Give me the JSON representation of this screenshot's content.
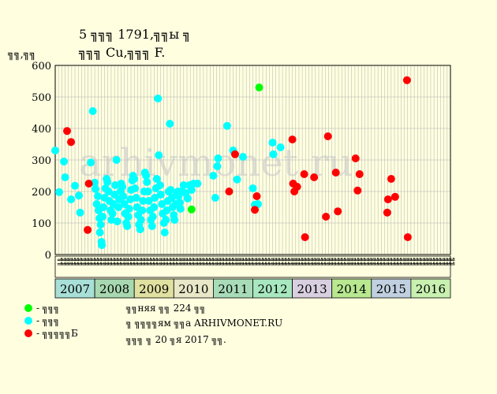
{
  "title_line1": "5 ╗╗╗ 1791,╗╗ы ╗",
  "title_line2": "╗╗╗ Cu,╗╗╗ F.",
  "ylabel": "╗╗,╗╗",
  "watermark": "arhivmonet.ru",
  "footer": {
    "line1": "╗╗няя ╗╗ 224 ╗╗",
    "line2": "╗ ╗╗╗╗ям ╗╗а ARHIVMONET.RU",
    "line3": "╗╗╗ ╗ 20 ╗я 2017 ╗╗."
  },
  "legend": [
    {
      "label": "- ╗╗╗",
      "color": "#00ff00"
    },
    {
      "label": "- ╗╗╗",
      "color": "#00ffff"
    },
    {
      "label": "- ╗╗╗╗╗Б",
      "color": "#ff0000"
    }
  ],
  "colors": {
    "background": "#ffffe0",
    "grid": "#b0b0b0"
  },
  "chart_data": {
    "type": "scatter",
    "ylim": [
      0,
      600
    ],
    "yticks": [
      0,
      100,
      200,
      300,
      400,
      500,
      600
    ],
    "grid": true,
    "xlim": [
      2007,
      2017
    ],
    "month_labels": [
      "╗╗",
      "╗╗",
      "╗╗",
      "╗╗",
      "╗╗",
      "╗╗",
      "╗╗",
      "╗╗",
      "╗╗",
      "╗╗",
      "╗╗",
      "╗╗",
      "╗╗",
      "╗╗",
      "╗╗",
      "╗╗",
      "╗╗",
      "╗╗",
      "╗╗",
      "╗╗",
      "╗╗",
      "╗╗",
      "╗╗",
      "╗╗",
      "╗╗",
      "╗╗",
      "╗╗",
      "╗╗",
      "╗╗",
      "╗╗",
      "╗╗",
      "╗╗",
      "╗╗",
      "╗╗",
      "╗╗",
      "╗╗",
      "╗╗",
      "╗╗",
      "╗╗",
      "╗╗",
      "╗╗",
      "╗╗",
      "╗╗",
      "╗╗",
      "╗╗",
      "╗╗",
      "╗╗",
      "╗╗",
      "╗╗",
      "╗╗",
      "╗╗",
      "╗╗",
      "╗╗",
      "╗╗",
      "╗╗",
      "╗╗",
      "╗╗",
      "╗╗",
      "╗╗",
      "╗╗",
      "╗╗",
      "╗╗",
      "╗╗",
      "╗╗",
      "╗╗",
      "╗╗",
      "╗╗",
      "╗╗",
      "╗╗",
      "╗╗",
      "╗╗",
      "╗╗",
      "╗╗",
      "╗╗",
      "╗╗",
      "╗╗",
      "╗╗",
      "╗╗",
      "╗╗",
      "╗╗",
      "╗╗",
      "╗╗",
      "╗╗",
      "╗╗",
      "╗╗",
      "╗╗",
      "╗╗",
      "╗╗",
      "╗╗",
      "╗╗",
      "╗╗",
      "╗╗",
      "╗╗",
      "╗╗",
      "╗╗",
      "╗╗",
      "╗╗",
      "╗╗",
      "╗╗",
      "╗╗",
      "╗╗",
      "╗╗",
      "╗╗",
      "╗╗",
      "╗╗",
      "╗╗",
      "╗╗",
      "╗╗",
      "╗╗",
      "╗╗",
      "╗╗",
      "╗╗",
      "╗╗",
      "╗╗",
      "╗╗",
      "╗╗",
      "╗╗",
      "╗╗",
      "╗╗",
      "╗╗"
    ],
    "years": [
      {
        "label": "2007",
        "color": "#a8e0d8"
      },
      {
        "label": "2008",
        "color": "#a8d8b0"
      },
      {
        "label": "2009",
        "color": "#e0e0a0"
      },
      {
        "label": "2010",
        "color": "#e8e8c8"
      },
      {
        "label": "2011",
        "color": "#a8dcb8"
      },
      {
        "label": "2012",
        "color": "#a8e8c0"
      },
      {
        "label": "2013",
        "color": "#d8d0e0"
      },
      {
        "label": "2014",
        "color": "#b8e890"
      },
      {
        "label": "2015",
        "color": "#c0d0e0"
      },
      {
        "label": "2016",
        "color": "#c8f0b0"
      }
    ],
    "series": [
      {
        "color": "#00ff00",
        "points": [
          [
            2010.45,
            143
          ],
          [
            2012.16,
            530
          ]
        ]
      },
      {
        "color": "#00ffff",
        "points": [
          [
            2007.0,
            330
          ],
          [
            2007.1,
            198
          ],
          [
            2007.22,
            295
          ],
          [
            2007.25,
            245
          ],
          [
            2007.4,
            175
          ],
          [
            2007.5,
            218
          ],
          [
            2007.6,
            187
          ],
          [
            2007.63,
            133
          ],
          [
            2007.9,
            292
          ],
          [
            2007.95,
            455
          ],
          [
            2008.0,
            228
          ],
          [
            2008.02,
            208
          ],
          [
            2008.05,
            160
          ],
          [
            2008.08,
            185
          ],
          [
            2008.1,
            140
          ],
          [
            2008.12,
            115
          ],
          [
            2008.13,
            70
          ],
          [
            2008.15,
            95
          ],
          [
            2008.17,
            40
          ],
          [
            2008.18,
            30
          ],
          [
            2008.2,
            120
          ],
          [
            2008.22,
            150
          ],
          [
            2008.25,
            180
          ],
          [
            2008.27,
            210
          ],
          [
            2008.3,
            240
          ],
          [
            2008.32,
            230
          ],
          [
            2008.35,
            200
          ],
          [
            2008.37,
            170
          ],
          [
            2008.4,
            140
          ],
          [
            2008.42,
            110
          ],
          [
            2008.45,
            130
          ],
          [
            2008.47,
            160
          ],
          [
            2008.5,
            190
          ],
          [
            2008.52,
            220
          ],
          [
            2008.55,
            300
          ],
          [
            2008.57,
            105
          ],
          [
            2008.6,
            150
          ],
          [
            2008.62,
            175
          ],
          [
            2008.65,
            200
          ],
          [
            2008.67,
            225
          ],
          [
            2008.7,
            215
          ],
          [
            2008.72,
            185
          ],
          [
            2008.75,
            160
          ],
          [
            2008.77,
            130
          ],
          [
            2008.8,
            100
          ],
          [
            2008.82,
            90
          ],
          [
            2008.85,
            120
          ],
          [
            2008.87,
            145
          ],
          [
            2008.9,
            175
          ],
          [
            2008.92,
            205
          ],
          [
            2008.95,
            235
          ],
          [
            2008.97,
            250
          ],
          [
            2009.0,
            240
          ],
          [
            2009.02,
            210
          ],
          [
            2009.05,
            180
          ],
          [
            2009.07,
            150
          ],
          [
            2009.1,
            125
          ],
          [
            2009.12,
            95
          ],
          [
            2009.15,
            80
          ],
          [
            2009.17,
            110
          ],
          [
            2009.2,
            140
          ],
          [
            2009.22,
            170
          ],
          [
            2009.25,
            200
          ],
          [
            2009.27,
            260
          ],
          [
            2009.3,
            250
          ],
          [
            2009.32,
            230
          ],
          [
            2009.35,
            200
          ],
          [
            2009.37,
            170
          ],
          [
            2009.4,
            140
          ],
          [
            2009.42,
            110
          ],
          [
            2009.45,
            90
          ],
          [
            2009.47,
            120
          ],
          [
            2009.5,
            150
          ],
          [
            2009.52,
            180
          ],
          [
            2009.55,
            210
          ],
          [
            2009.57,
            240
          ],
          [
            2009.6,
            495
          ],
          [
            2009.62,
            315
          ],
          [
            2009.65,
            220
          ],
          [
            2009.67,
            190
          ],
          [
            2009.7,
            160
          ],
          [
            2009.72,
            130
          ],
          [
            2009.75,
            100
          ],
          [
            2009.77,
            70
          ],
          [
            2009.8,
            110
          ],
          [
            2009.82,
            140
          ],
          [
            2009.85,
            170
          ],
          [
            2009.87,
            200
          ],
          [
            2009.9,
            415
          ],
          [
            2009.92,
            205
          ],
          [
            2009.95,
            180
          ],
          [
            2009.97,
            150
          ],
          [
            2010.0,
            125
          ],
          [
            2010.02,
            110
          ],
          [
            2010.05,
            160
          ],
          [
            2010.07,
            190
          ],
          [
            2010.1,
            200
          ],
          [
            2010.12,
            185
          ],
          [
            2010.15,
            165
          ],
          [
            2010.17,
            145
          ],
          [
            2010.2,
            200
          ],
          [
            2010.25,
            220
          ],
          [
            2010.3,
            195
          ],
          [
            2010.35,
            178
          ],
          [
            2010.4,
            220
          ],
          [
            2010.45,
            205
          ],
          [
            2010.5,
            225
          ],
          [
            2010.6,
            225
          ],
          [
            2011.0,
            250
          ],
          [
            2011.05,
            180
          ],
          [
            2011.1,
            280
          ],
          [
            2011.12,
            305
          ],
          [
            2011.35,
            408
          ],
          [
            2011.5,
            330
          ],
          [
            2011.6,
            238
          ],
          [
            2011.75,
            310
          ],
          [
            2012.0,
            210
          ],
          [
            2012.05,
            158
          ],
          [
            2012.13,
            160
          ],
          [
            2012.5,
            355
          ],
          [
            2012.52,
            318
          ],
          [
            2012.7,
            340
          ]
        ]
      },
      {
        "color": "#ff0000",
        "points": [
          [
            2007.3,
            392
          ],
          [
            2007.4,
            357
          ],
          [
            2007.82,
            78
          ],
          [
            2007.85,
            225
          ],
          [
            2011.4,
            200
          ],
          [
            2011.55,
            318
          ],
          [
            2012.05,
            142
          ],
          [
            2012.1,
            185
          ],
          [
            2013.0,
            365
          ],
          [
            2013.02,
            225
          ],
          [
            2013.05,
            200
          ],
          [
            2013.12,
            215
          ],
          [
            2013.3,
            255
          ],
          [
            2013.32,
            55
          ],
          [
            2013.55,
            245
          ],
          [
            2013.85,
            120
          ],
          [
            2013.9,
            375
          ],
          [
            2014.1,
            260
          ],
          [
            2014.15,
            137
          ],
          [
            2014.6,
            305
          ],
          [
            2014.65,
            203
          ],
          [
            2014.7,
            255
          ],
          [
            2015.4,
            133
          ],
          [
            2015.42,
            175
          ],
          [
            2015.5,
            240
          ],
          [
            2015.6,
            183
          ],
          [
            2015.9,
            553
          ],
          [
            2015.92,
            55
          ]
        ]
      }
    ]
  }
}
